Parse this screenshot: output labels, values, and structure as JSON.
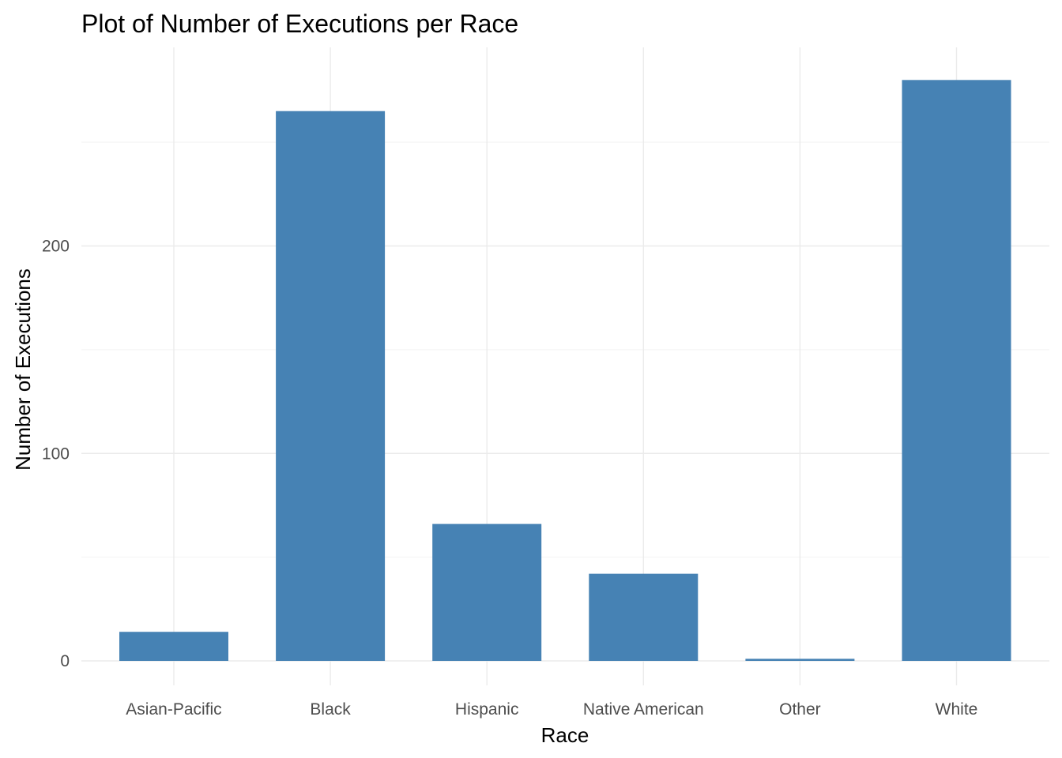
{
  "chart_data": {
    "type": "bar",
    "title": "Plot of Number of Executions per Race",
    "xlabel": "Race",
    "ylabel": "Number of Executions",
    "categories": [
      "Asian-Pacific",
      "Black",
      "Hispanic",
      "Native American",
      "Other",
      "White"
    ],
    "values": [
      14,
      265,
      66,
      42,
      1,
      280
    ],
    "ylim": [
      0,
      294
    ],
    "yticks": [
      0,
      100,
      200
    ],
    "grid": true,
    "legend": "none",
    "bar_color": "#4682b4",
    "grid_color": "#ebebeb"
  }
}
